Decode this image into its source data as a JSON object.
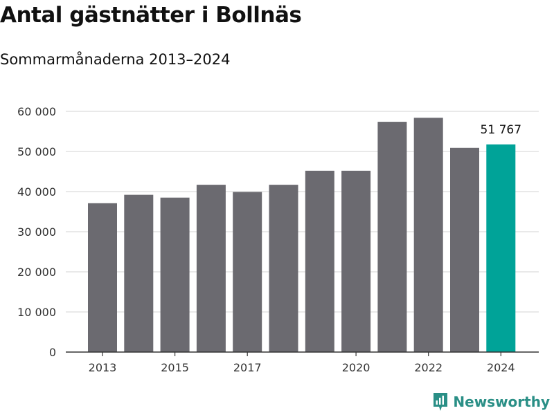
{
  "title": "Antal gästnätter i Bollnäs",
  "subtitle": "Sommarmånaderna 2013–2024",
  "brand": {
    "name": "Newsworthy",
    "color": "#2a8f86"
  },
  "colors": {
    "bar": "#6b6a70",
    "highlight": "#00a398",
    "grid": "#dcdcdc",
    "axis": "#333333"
  },
  "chart_data": {
    "type": "bar",
    "categories": [
      "2013",
      "2014",
      "2015",
      "2016",
      "2017",
      "2018",
      "2019",
      "2020",
      "2021",
      "2022",
      "2023",
      "2024"
    ],
    "values": [
      37100,
      39200,
      38500,
      41700,
      39900,
      41700,
      45200,
      45200,
      57400,
      58400,
      50900,
      51767
    ],
    "x_tick_labels": [
      "2013",
      "2015",
      "2017",
      "2020",
      "2022",
      "2024"
    ],
    "y_ticks": [
      0,
      10000,
      20000,
      30000,
      40000,
      50000,
      60000
    ],
    "y_tick_labels": [
      "0",
      "10 000",
      "20 000",
      "30 000",
      "40 000",
      "50 000",
      "60 000"
    ],
    "ylim": [
      0,
      60000
    ],
    "highlight_index": 11,
    "highlight_label": "51 767",
    "grid": true,
    "xlabel": "",
    "ylabel": ""
  }
}
